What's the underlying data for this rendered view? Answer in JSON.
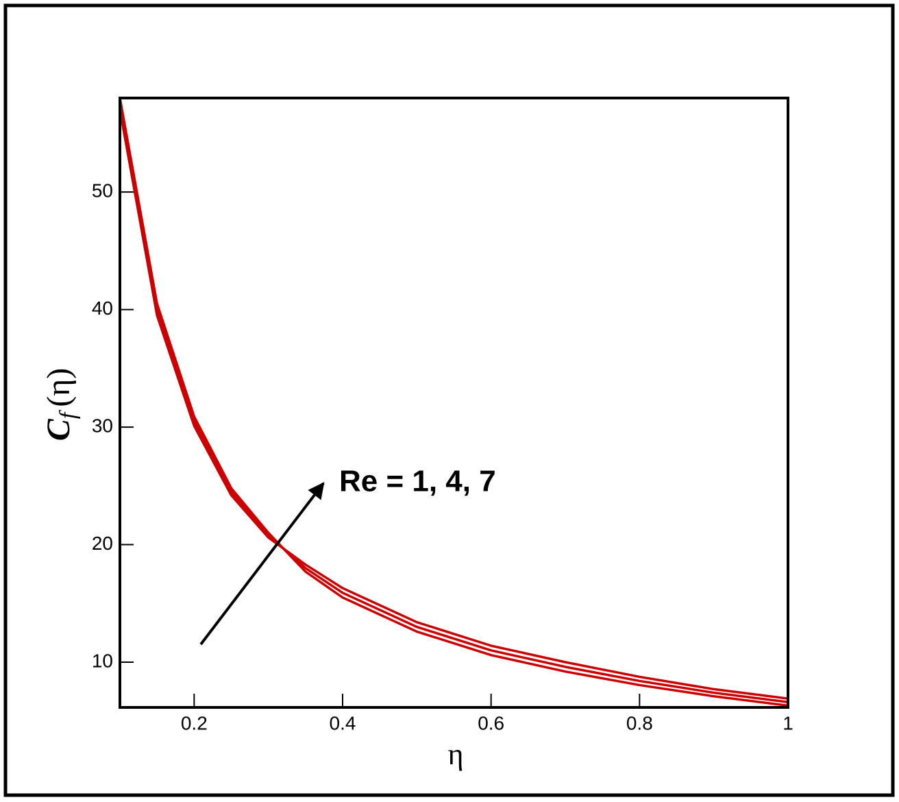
{
  "chart_data": {
    "type": "line",
    "annotation": "Re = 1, 4, 7",
    "x_label": "η",
    "y_label": {
      "main": "C",
      "subscript": "f",
      "suffix": "(η)"
    },
    "x": [
      0.1,
      0.15,
      0.2,
      0.25,
      0.3,
      0.35,
      0.4,
      0.5,
      0.6,
      0.7,
      0.8,
      0.9,
      1.0
    ],
    "series": [
      {
        "color": "#cc0000",
        "values": [
          58,
          40.5,
          30.9,
          24.8,
          21.0,
          17.7,
          15.5,
          12.6,
          10.6,
          9.2,
          8.05,
          7.1,
          6.3
        ]
      },
      {
        "color": "#cc0000",
        "values": [
          57.5,
          40,
          30.5,
          24.5,
          20.8,
          18.0,
          15.9,
          13.0,
          11.0,
          9.6,
          8.4,
          7.4,
          6.6
        ]
      },
      {
        "color": "#cc0000",
        "values": [
          57,
          39.5,
          30.1,
          24.2,
          20.6,
          18.3,
          16.3,
          13.4,
          11.4,
          10.0,
          8.75,
          7.7,
          6.9
        ]
      }
    ],
    "xlim": [
      0.1,
      1
    ],
    "ylim": [
      6.15,
      58
    ],
    "xticks": [
      0.2,
      0.4,
      0.6,
      0.8,
      1
    ],
    "yticks": [
      10,
      20,
      30,
      40,
      50
    ]
  }
}
